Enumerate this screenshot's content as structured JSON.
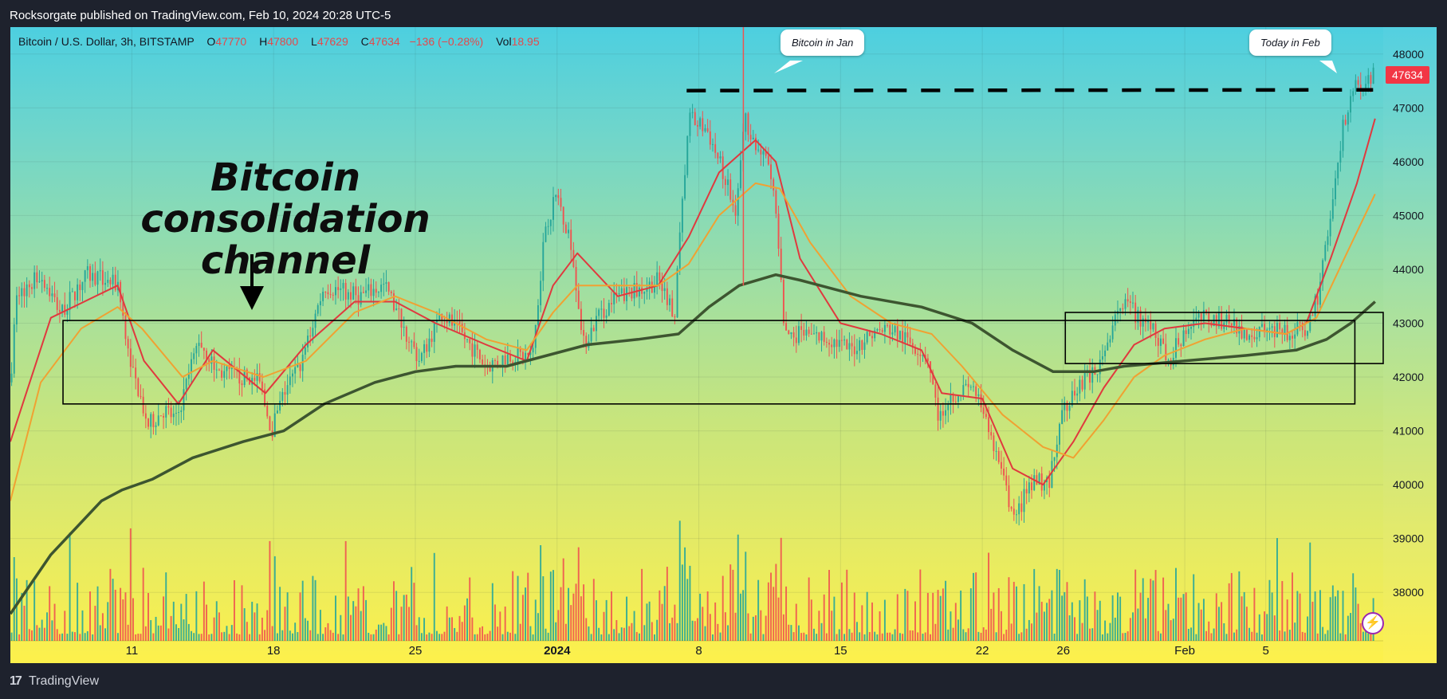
{
  "header": {
    "publisher_text": "Rocksorgate published on TradingView.com, Feb 10, 2024 20:28 UTC-5"
  },
  "legend": {
    "symbol": "Bitcoin / U.S. Dollar, 3h, BITSTAMP",
    "open_label": "O",
    "open": "47770",
    "high_label": "H",
    "high": "47800",
    "low_label": "L",
    "low": "47629",
    "close_label": "C",
    "close": "47634",
    "change": "−136 (−0.28%)",
    "vol_label": "Vol",
    "vol": "18.95"
  },
  "annotations": {
    "heading": "Bitcoin consolidation channel",
    "callout_jan": "Bitcoin in Jan",
    "callout_feb": "Today in Feb",
    "last_price": "47634"
  },
  "footer": {
    "brand": "TradingView",
    "logo_glyph": "17"
  },
  "colors": {
    "up": "#26a69a",
    "down": "#ef5350",
    "ma_fast": "#e0393e",
    "ma_mid": "#f0a132",
    "ma_slow": "#3d5530",
    "axis_text": "#131722"
  },
  "chart_data": {
    "type": "candlestick",
    "title": "Bitcoin / U.S. Dollar, 3h, BITSTAMP",
    "y_ticks": [
      38000,
      39000,
      40000,
      41000,
      42000,
      43000,
      44000,
      45000,
      46000,
      47000,
      48000
    ],
    "ylim": [
      37100,
      48500
    ],
    "x_tick_labels": [
      {
        "label": "11",
        "day": 11
      },
      {
        "label": "18",
        "day": 18
      },
      {
        "label": "25",
        "day": 25
      },
      {
        "label": "2024",
        "day": 32
      },
      {
        "label": "8",
        "day": 39
      },
      {
        "label": "15",
        "day": 46
      },
      {
        "label": "22",
        "day": 53
      },
      {
        "label": "26",
        "day": 57
      },
      {
        "label": "Feb",
        "day": 63
      },
      {
        "label": "5",
        "day": 67
      }
    ],
    "xlim_days": [
      5.0,
      72.8
    ],
    "price_path": [
      [
        5.0,
        41900
      ],
      [
        5.3,
        43500
      ],
      [
        6.5,
        43900
      ],
      [
        7.5,
        43200
      ],
      [
        8.8,
        43900
      ],
      [
        10.3,
        43700
      ],
      [
        11.0,
        42200
      ],
      [
        11.8,
        41100
      ],
      [
        12.6,
        41400
      ],
      [
        13.2,
        41200
      ],
      [
        14.3,
        42700
      ],
      [
        15.2,
        42100
      ],
      [
        16.4,
        42000
      ],
      [
        17.3,
        41900
      ],
      [
        17.9,
        41000
      ],
      [
        18.6,
        41800
      ],
      [
        19.3,
        42200
      ],
      [
        20.5,
        43700
      ],
      [
        22.2,
        43500
      ],
      [
        23.5,
        43700
      ],
      [
        24.1,
        43200
      ],
      [
        25.2,
        42300
      ],
      [
        26.3,
        43200
      ],
      [
        27.5,
        42700
      ],
      [
        28.5,
        42200
      ],
      [
        29.6,
        42400
      ],
      [
        30.8,
        42400
      ],
      [
        31.4,
        44800
      ],
      [
        32.0,
        45400
      ],
      [
        32.7,
        44500
      ],
      [
        33.3,
        42600
      ],
      [
        34.0,
        43100
      ],
      [
        35.0,
        43500
      ],
      [
        36.0,
        43600
      ],
      [
        37.0,
        43800
      ],
      [
        37.8,
        43200
      ],
      [
        38.5,
        46800
      ],
      [
        39.4,
        46600
      ],
      [
        40.2,
        45800
      ],
      [
        40.8,
        45100
      ],
      [
        41.3,
        46800
      ],
      [
        41.8,
        46300
      ],
      [
        42.5,
        45900
      ],
      [
        42.9,
        44700
      ],
      [
        43.2,
        42800
      ],
      [
        44.0,
        42800
      ],
      [
        45.5,
        42700
      ],
      [
        46.5,
        42500
      ],
      [
        47.5,
        42800
      ],
      [
        48.4,
        42900
      ],
      [
        49.6,
        42600
      ],
      [
        50.3,
        42400
      ],
      [
        50.8,
        41300
      ],
      [
        51.6,
        41700
      ],
      [
        52.6,
        41800
      ],
      [
        53.1,
        41200
      ],
      [
        53.6,
        40700
      ],
      [
        54.1,
        40000
      ],
      [
        54.6,
        39300
      ],
      [
        55.1,
        39800
      ],
      [
        55.7,
        40100
      ],
      [
        56.3,
        40000
      ],
      [
        57.0,
        41400
      ],
      [
        57.6,
        41800
      ],
      [
        58.2,
        42000
      ],
      [
        58.9,
        42200
      ],
      [
        59.6,
        43300
      ],
      [
        60.2,
        43300
      ],
      [
        60.8,
        43100
      ],
      [
        61.5,
        42900
      ],
      [
        62.2,
        42300
      ],
      [
        62.6,
        42600
      ],
      [
        63.3,
        43000
      ],
      [
        64.1,
        43100
      ],
      [
        65.2,
        43000
      ],
      [
        66.2,
        42800
      ],
      [
        67.1,
        42900
      ],
      [
        68.1,
        42800
      ],
      [
        69.0,
        42900
      ],
      [
        69.6,
        43500
      ],
      [
        70.3,
        45300
      ],
      [
        70.8,
        46600
      ],
      [
        71.3,
        47300
      ],
      [
        71.8,
        47500
      ],
      [
        72.3,
        47634
      ]
    ],
    "series": [
      {
        "name": "",
        "values": [
          [
            5.0,
            40800
          ],
          [
            7.0,
            43100
          ],
          [
            10.3,
            43700
          ],
          [
            11.6,
            42300
          ],
          [
            13.3,
            41500
          ],
          [
            15.0,
            42500
          ],
          [
            17.6,
            41700
          ],
          [
            19.6,
            42600
          ],
          [
            22.0,
            43400
          ],
          [
            24.0,
            43400
          ],
          [
            26.0,
            43000
          ],
          [
            28.5,
            42600
          ],
          [
            30.5,
            42300
          ],
          [
            31.8,
            43700
          ],
          [
            33.0,
            44300
          ],
          [
            35.0,
            43500
          ],
          [
            37.0,
            43700
          ],
          [
            38.5,
            44600
          ],
          [
            40.0,
            45800
          ],
          [
            41.8,
            46400
          ],
          [
            42.8,
            46000
          ],
          [
            44.0,
            44200
          ],
          [
            46.0,
            43000
          ],
          [
            48.0,
            42800
          ],
          [
            50.0,
            42500
          ],
          [
            51.0,
            41700
          ],
          [
            53.0,
            41600
          ],
          [
            54.5,
            40300
          ],
          [
            56.0,
            40000
          ],
          [
            57.5,
            40800
          ],
          [
            59.0,
            41800
          ],
          [
            60.5,
            42600
          ],
          [
            62.0,
            42900
          ],
          [
            64.0,
            43000
          ],
          [
            66.0,
            42900
          ],
          [
            68.0,
            42800
          ],
          [
            69.0,
            43000
          ],
          [
            70.2,
            44200
          ],
          [
            71.5,
            45600
          ],
          [
            72.4,
            46800
          ]
        ]
      },
      {
        "name": "",
        "values": [
          [
            5.0,
            39700
          ],
          [
            6.5,
            41900
          ],
          [
            8.5,
            42900
          ],
          [
            10.3,
            43300
          ],
          [
            11.5,
            42900
          ],
          [
            13.5,
            42000
          ],
          [
            15.0,
            42300
          ],
          [
            17.5,
            42000
          ],
          [
            19.6,
            42300
          ],
          [
            22.0,
            43200
          ],
          [
            24.0,
            43500
          ],
          [
            26.0,
            43200
          ],
          [
            28.5,
            42700
          ],
          [
            30.5,
            42500
          ],
          [
            31.8,
            43200
          ],
          [
            33.0,
            43700
          ],
          [
            35.0,
            43700
          ],
          [
            37.0,
            43700
          ],
          [
            38.5,
            44100
          ],
          [
            40.0,
            45000
          ],
          [
            41.8,
            45600
          ],
          [
            43.0,
            45500
          ],
          [
            44.5,
            44500
          ],
          [
            46.5,
            43500
          ],
          [
            48.5,
            43000
          ],
          [
            50.5,
            42800
          ],
          [
            52.0,
            42200
          ],
          [
            54.0,
            41300
          ],
          [
            56.0,
            40700
          ],
          [
            57.5,
            40500
          ],
          [
            59.0,
            41200
          ],
          [
            60.5,
            42000
          ],
          [
            62.0,
            42400
          ],
          [
            64.0,
            42700
          ],
          [
            66.0,
            42900
          ],
          [
            68.0,
            42800
          ],
          [
            69.5,
            43100
          ],
          [
            71.0,
            44300
          ],
          [
            72.4,
            45400
          ]
        ]
      },
      {
        "name": "",
        "values": [
          [
            5.0,
            37600
          ],
          [
            7.0,
            38700
          ],
          [
            9.5,
            39700
          ],
          [
            10.5,
            39900
          ],
          [
            12.0,
            40100
          ],
          [
            14.0,
            40500
          ],
          [
            16.5,
            40800
          ],
          [
            18.5,
            41000
          ],
          [
            20.5,
            41500
          ],
          [
            23.0,
            41900
          ],
          [
            25.0,
            42100
          ],
          [
            27.0,
            42200
          ],
          [
            29.5,
            42200
          ],
          [
            31.5,
            42400
          ],
          [
            33.5,
            42600
          ],
          [
            36.0,
            42700
          ],
          [
            38.0,
            42800
          ],
          [
            39.5,
            43300
          ],
          [
            41.0,
            43700
          ],
          [
            42.8,
            43900
          ],
          [
            44.0,
            43800
          ],
          [
            47.0,
            43500
          ],
          [
            50.0,
            43300
          ],
          [
            52.5,
            43000
          ],
          [
            54.5,
            42500
          ],
          [
            56.5,
            42100
          ],
          [
            58.5,
            42100
          ],
          [
            60.0,
            42200
          ],
          [
            63.0,
            42300
          ],
          [
            66.0,
            42400
          ],
          [
            68.5,
            42500
          ],
          [
            70.0,
            42700
          ],
          [
            71.2,
            43000
          ],
          [
            72.4,
            43400
          ]
        ]
      }
    ],
    "channels": [
      {
        "day_from": 7.6,
        "day_to": 71.4,
        "low": 41500,
        "high": 43050
      },
      {
        "day_from": 57.1,
        "day_to": 72.8,
        "low": 42250,
        "high": 43200
      }
    ],
    "resistance_level": {
      "value": 47320,
      "day_from": 38.4,
      "day_to": 72.3
    },
    "volume_ylim": [
      0,
      1
    ],
    "grid": true
  }
}
